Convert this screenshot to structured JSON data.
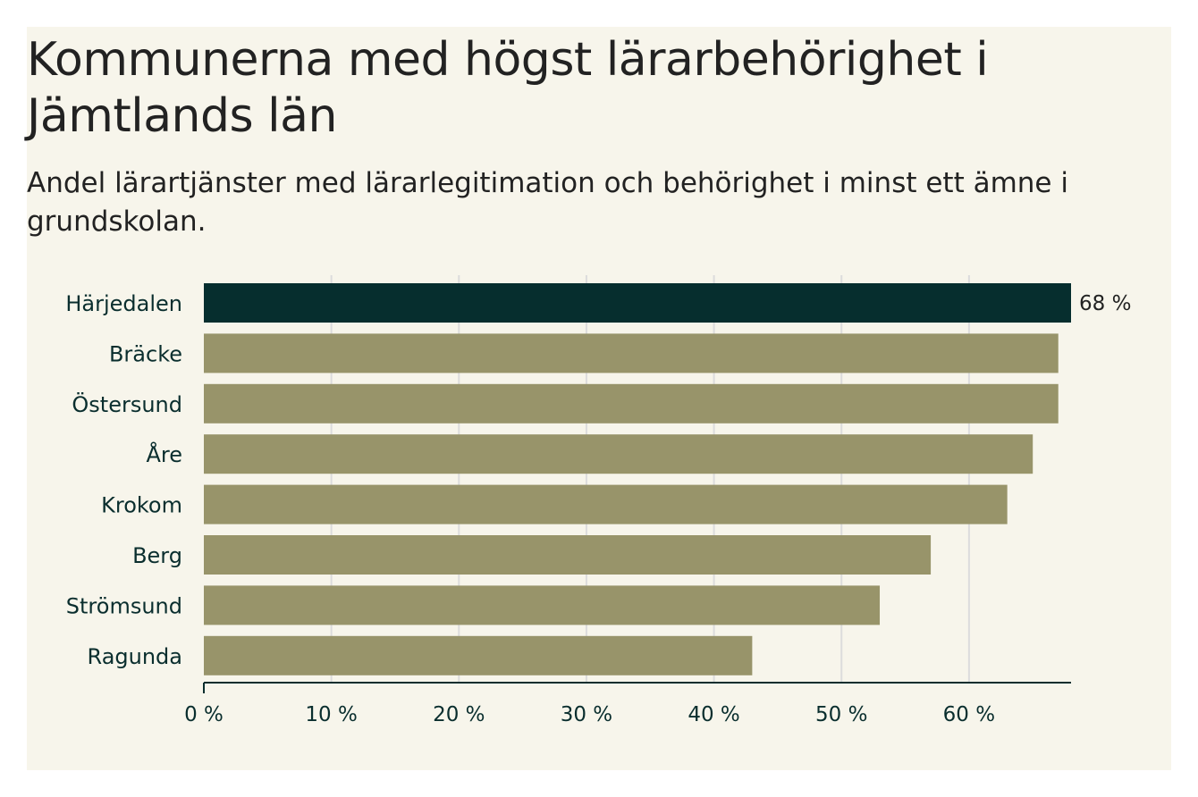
{
  "chart_data": {
    "type": "bar",
    "orientation": "horizontal",
    "title": "Kommunerna med högst lärarbehörighet i Jämtlands län",
    "subtitle": "Andel lärartjänster med lärarlegitimation och behörighet i minst ett ämne i grundskolan.",
    "categories": [
      "Härjedalen",
      "Bräcke",
      "Östersund",
      "Åre",
      "Krokom",
      "Berg",
      "Strömsund",
      "Ragunda"
    ],
    "values": [
      68,
      67,
      67,
      65,
      63,
      57,
      53,
      43
    ],
    "highlight": "Härjedalen",
    "data_labels": [
      {
        "category": "Härjedalen",
        "text": "68 %"
      }
    ],
    "xlim": [
      0,
      68
    ],
    "xticks": [
      0,
      10,
      20,
      30,
      40,
      50,
      60
    ],
    "xtick_labels": [
      "0 %",
      "10 %",
      "20 %",
      "30 %",
      "40 %",
      "50 %",
      "60 %"
    ],
    "grid": true,
    "colors": {
      "highlight": "#062e2e",
      "bar": "#98946a",
      "background": "#f7f5eb",
      "gridline": "#dcdcdc",
      "axis": "#0a2e2e"
    }
  }
}
